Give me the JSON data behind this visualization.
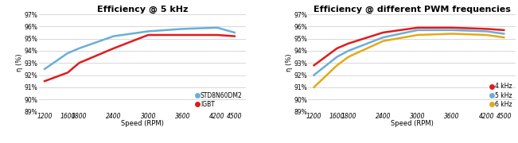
{
  "chart1": {
    "title": "Efficiency @ 5 kHz",
    "xlabel": "Speed (RPM)",
    "ylabel": "η (%)",
    "x": [
      1200,
      1600,
      1800,
      2400,
      3000,
      3600,
      4200,
      4500
    ],
    "blue_line": [
      92.5,
      93.8,
      94.2,
      95.2,
      95.6,
      95.8,
      95.9,
      95.5
    ],
    "red_line": [
      91.5,
      92.2,
      93.0,
      94.2,
      95.3,
      95.3,
      95.3,
      95.2
    ],
    "blue_color": "#6baed6",
    "red_color": "#e31a1c",
    "legend": [
      "STD8N60DM2",
      "IGBT"
    ],
    "ylim": [
      89,
      97
    ],
    "yticks": [
      89,
      90,
      91,
      92,
      93,
      94,
      95,
      96,
      97
    ],
    "ytick_labels": [
      "89%",
      "90%",
      "91%",
      "92%",
      "93%",
      "94%",
      "95%",
      "96%",
      "97%"
    ],
    "xticks": [
      1200,
      1600,
      1800,
      2400,
      3000,
      3600,
      4200,
      4500
    ]
  },
  "chart2": {
    "title": "Efficiency @ different PWM frequencies",
    "xlabel": "Speed (RPM)",
    "ylabel": "η (%)",
    "x": [
      1200,
      1600,
      1800,
      2400,
      3000,
      3600,
      4200,
      4500
    ],
    "red_line": [
      92.8,
      94.2,
      94.6,
      95.5,
      95.9,
      95.9,
      95.8,
      95.7
    ],
    "blue_line": [
      92.0,
      93.5,
      94.0,
      95.1,
      95.7,
      95.7,
      95.6,
      95.4
    ],
    "yellow_line": [
      91.0,
      92.8,
      93.5,
      94.8,
      95.3,
      95.4,
      95.3,
      95.1
    ],
    "red_color": "#e31a1c",
    "blue_color": "#6baed6",
    "yellow_color": "#e6a817",
    "legend": [
      "4 kHz",
      "5 kHz",
      "6 kHz"
    ],
    "ylim": [
      89,
      97
    ],
    "yticks": [
      89,
      90,
      91,
      92,
      93,
      94,
      95,
      96,
      97
    ],
    "ytick_labels": [
      "89%",
      "90%",
      "91%",
      "92%",
      "93%",
      "94%",
      "95%",
      "96%",
      "97%"
    ],
    "xticks": [
      1200,
      1600,
      1800,
      2400,
      3000,
      3600,
      4200,
      4500
    ]
  },
  "bg_color": "#ffffff",
  "grid_color": "#c8c8c8",
  "title_fontsize": 8,
  "axis_label_fontsize": 6,
  "tick_fontsize": 5.5,
  "linewidth": 1.8,
  "legend_fontsize": 5.5,
  "legend_marker_size": 6
}
